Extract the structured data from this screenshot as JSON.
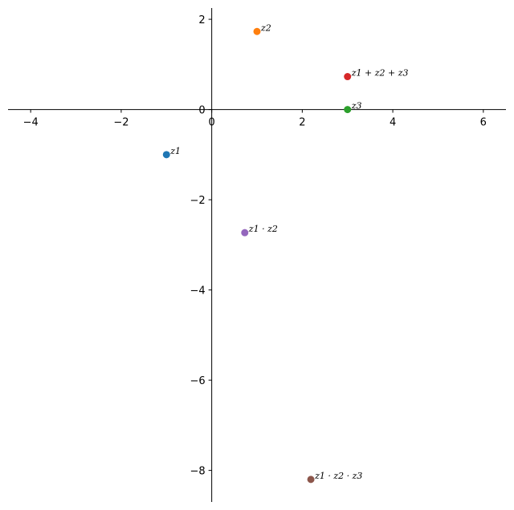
{
  "chart_data": {
    "type": "scatter",
    "title": "",
    "xlabel": "",
    "ylabel": "",
    "xlim": [
      -4.5,
      6.5
    ],
    "ylim": [
      -8.7,
      2.25
    ],
    "xticks": [
      -4,
      -2,
      0,
      2,
      4,
      6
    ],
    "yticks": [
      2,
      0,
      -2,
      -4,
      -6,
      -8
    ],
    "xtick_labels": [
      "−4",
      "−2",
      "0",
      "2",
      "4",
      "6"
    ],
    "ytick_labels": [
      "2",
      "0",
      "−2",
      "−4",
      "−6",
      "−8"
    ],
    "grid": false,
    "spines": "centered at origin",
    "points": [
      {
        "label": "z1",
        "x": -1.0,
        "y": -1.0,
        "color": "#1f77b4"
      },
      {
        "label": "z2",
        "x": 1.0,
        "y": 1.73,
        "color": "#ff7f0e"
      },
      {
        "label": "z3",
        "x": 3.0,
        "y": 0.0,
        "color": "#2ca02c"
      },
      {
        "label": "z1 + z2 + z3",
        "x": 3.0,
        "y": 0.73,
        "color": "#d62728"
      },
      {
        "label": "z1 · z2",
        "x": 0.73,
        "y": -2.73,
        "color": "#9467bd"
      },
      {
        "label": "z1 · z2 · z3",
        "x": 2.19,
        "y": -8.2,
        "color": "#8c564b"
      }
    ]
  }
}
